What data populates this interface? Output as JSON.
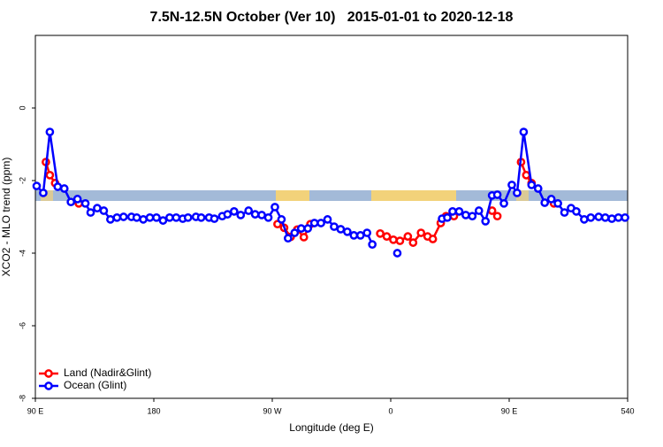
{
  "chart_data": {
    "type": "line",
    "title": "7.5N-12.5N October (Ver 10)   2015-01-01 to 2020-12-18",
    "xlabel": "Longitude (deg E)",
    "ylabel": "XCO2 - MLO trend (ppm)",
    "xlim": [
      90,
      540
    ],
    "ylim": [
      -8,
      2
    ],
    "xticks": [
      {
        "value": 90,
        "label": "90 E"
      },
      180,
      {
        "value": 270,
        "label": "90 W"
      },
      {
        "value": 360,
        "label": "0"
      },
      {
        "value": 450,
        "label": "90 E"
      },
      540
    ],
    "yticks": [
      0,
      -2,
      -4,
      -6,
      -8
    ],
    "legend": "bottom-left",
    "series": [
      {
        "name": "Land (Nadir&Glint)",
        "color": "#ff0000",
        "x": [
          98,
          101,
          105,
          114,
          123,
          200,
          274,
          279,
          284,
          289,
          294,
          299,
          320,
          352,
          357,
          362,
          367,
          373,
          377,
          383,
          388,
          392,
          398,
          402,
          408,
          420,
          437,
          441,
          450,
          459,
          463,
          467,
          475,
          484
        ],
        "values": [
          -1.49,
          -1.85,
          -2.07,
          null,
          -2.63,
          null,
          -3.2,
          -3.3,
          -3.55,
          -3.35,
          -3.56,
          -3.2,
          null,
          -3.46,
          -3.54,
          -3.63,
          -3.66,
          -3.54,
          -3.71,
          -3.44,
          -3.54,
          -3.61,
          -3.17,
          -2.98,
          -2.98,
          null,
          -2.83,
          -2.98,
          null,
          -1.49,
          -1.85,
          -2.07,
          null,
          -2.63
        ]
      },
      {
        "name": "Ocean (Glint)",
        "color": "#0000ff",
        "x": [
          91,
          96,
          101,
          107,
          112,
          117,
          122,
          128,
          132,
          137,
          142,
          147,
          152,
          157,
          163,
          167,
          172,
          177,
          182,
          187,
          192,
          197,
          202,
          206,
          212,
          216,
          222,
          226,
          232,
          236,
          241,
          246,
          252,
          257,
          262,
          267,
          272,
          277,
          282,
          287,
          292,
          297,
          302,
          307,
          312,
          317,
          322,
          327,
          332,
          337,
          342,
          346,
          356,
          365,
          382,
          399,
          403,
          407,
          412,
          417,
          422,
          427,
          432,
          437,
          441,
          446,
          452,
          456,
          461,
          467,
          472,
          477,
          482,
          487,
          492,
          497,
          501,
          507,
          512,
          518,
          523,
          528,
          533,
          538
        ],
        "values": [
          -2.15,
          -2.34,
          -0.66,
          -2.17,
          -2.22,
          -2.59,
          -2.51,
          -2.63,
          -2.88,
          -2.76,
          -2.83,
          -3.07,
          -3.02,
          -3.0,
          -3.0,
          -3.02,
          -3.07,
          -3.02,
          -3.02,
          -3.1,
          -3.02,
          -3.02,
          -3.05,
          -3.02,
          -3.0,
          -3.02,
          -3.02,
          -3.05,
          -2.98,
          -2.93,
          -2.85,
          -2.95,
          -2.83,
          -2.93,
          -2.95,
          -3.02,
          -2.73,
          -3.07,
          -3.59,
          -3.44,
          -3.32,
          -3.32,
          -3.17,
          -3.17,
          -3.07,
          -3.27,
          -3.34,
          -3.41,
          -3.51,
          -3.51,
          -3.44,
          -3.76,
          null,
          -4.0,
          null,
          -3.05,
          -3.02,
          -2.85,
          -2.85,
          -2.95,
          -2.98,
          -2.83,
          -3.12,
          -2.41,
          -2.39,
          -2.63,
          -2.12,
          -2.34,
          -0.66,
          -2.12,
          -2.22,
          -2.61,
          -2.51,
          -2.63,
          -2.88,
          -2.76,
          -2.85,
          -3.07,
          -3.02,
          -3.0,
          -3.02,
          -3.05,
          -3.02,
          -3.02
        ]
      }
    ]
  }
}
